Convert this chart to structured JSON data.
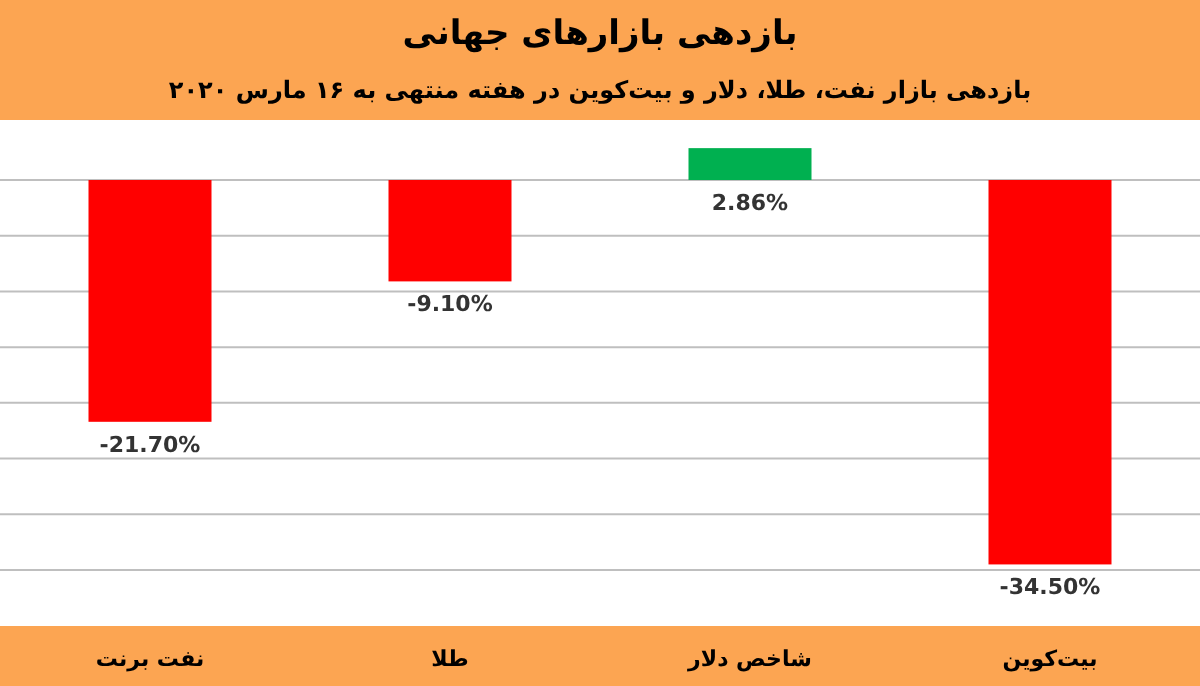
{
  "chart_data": {
    "type": "bar",
    "title": "بازدهی بازارهای جهانی",
    "subtitle": "بازدهی بازار نفت، طلا، دلار و بیت‌کوین در هفته منتهی به ۱۶ مارس ۲۰۲۰",
    "categories": [
      "نفت برنت",
      "طلا",
      "شاخص دلار",
      "بیت‌کوین"
    ],
    "values": [
      -21.7,
      -9.1,
      2.86,
      -34.5
    ],
    "colors": [
      "#ff0000",
      "#ff0000",
      "#00b050",
      "#ff0000"
    ],
    "value_labels": [
      "-21.70%",
      "-9.10%",
      "2.86%",
      "-34.50%"
    ],
    "yticks": [
      {
        "value": -35,
        "label": null
      },
      {
        "value": -30,
        "label": null
      },
      {
        "value": -25,
        "label": null
      },
      {
        "value": -20,
        "label": null
      },
      {
        "value": -15,
        "label": null
      },
      {
        "value": -10,
        "label": null
      },
      {
        "value": -5,
        "label": null
      },
      {
        "value": 0,
        "label": null
      }
    ],
    "grid": "y"
  }
}
